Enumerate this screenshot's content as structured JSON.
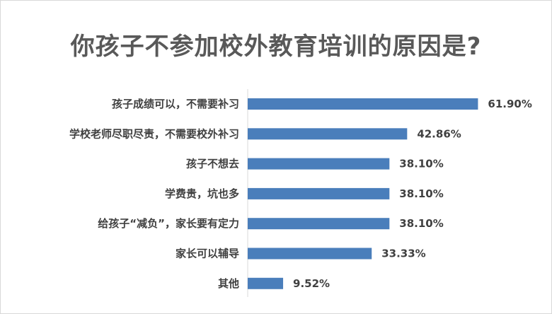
{
  "chart_data": {
    "type": "bar",
    "orientation": "horizontal",
    "title": "你孩子不参加校外教育培训的原因是?",
    "categories": [
      "孩子成绩可以，不需要补习",
      "学校老师尽职尽责，不需要校外补习",
      "孩子不想去",
      "学费贵，坑也多",
      "给孩子“减负”，家长要有定力",
      "家长可以辅导",
      "其他"
    ],
    "values": [
      61.9,
      42.86,
      38.1,
      38.1,
      38.1,
      33.33,
      9.52
    ],
    "value_labels": [
      "61.90%",
      "42.86%",
      "38.10%",
      "38.10%",
      "38.10%",
      "33.33%",
      "9.52%"
    ],
    "xlim": [
      0,
      70
    ],
    "grid": false,
    "legend": "none",
    "bar_color": "#4a7ebb"
  }
}
